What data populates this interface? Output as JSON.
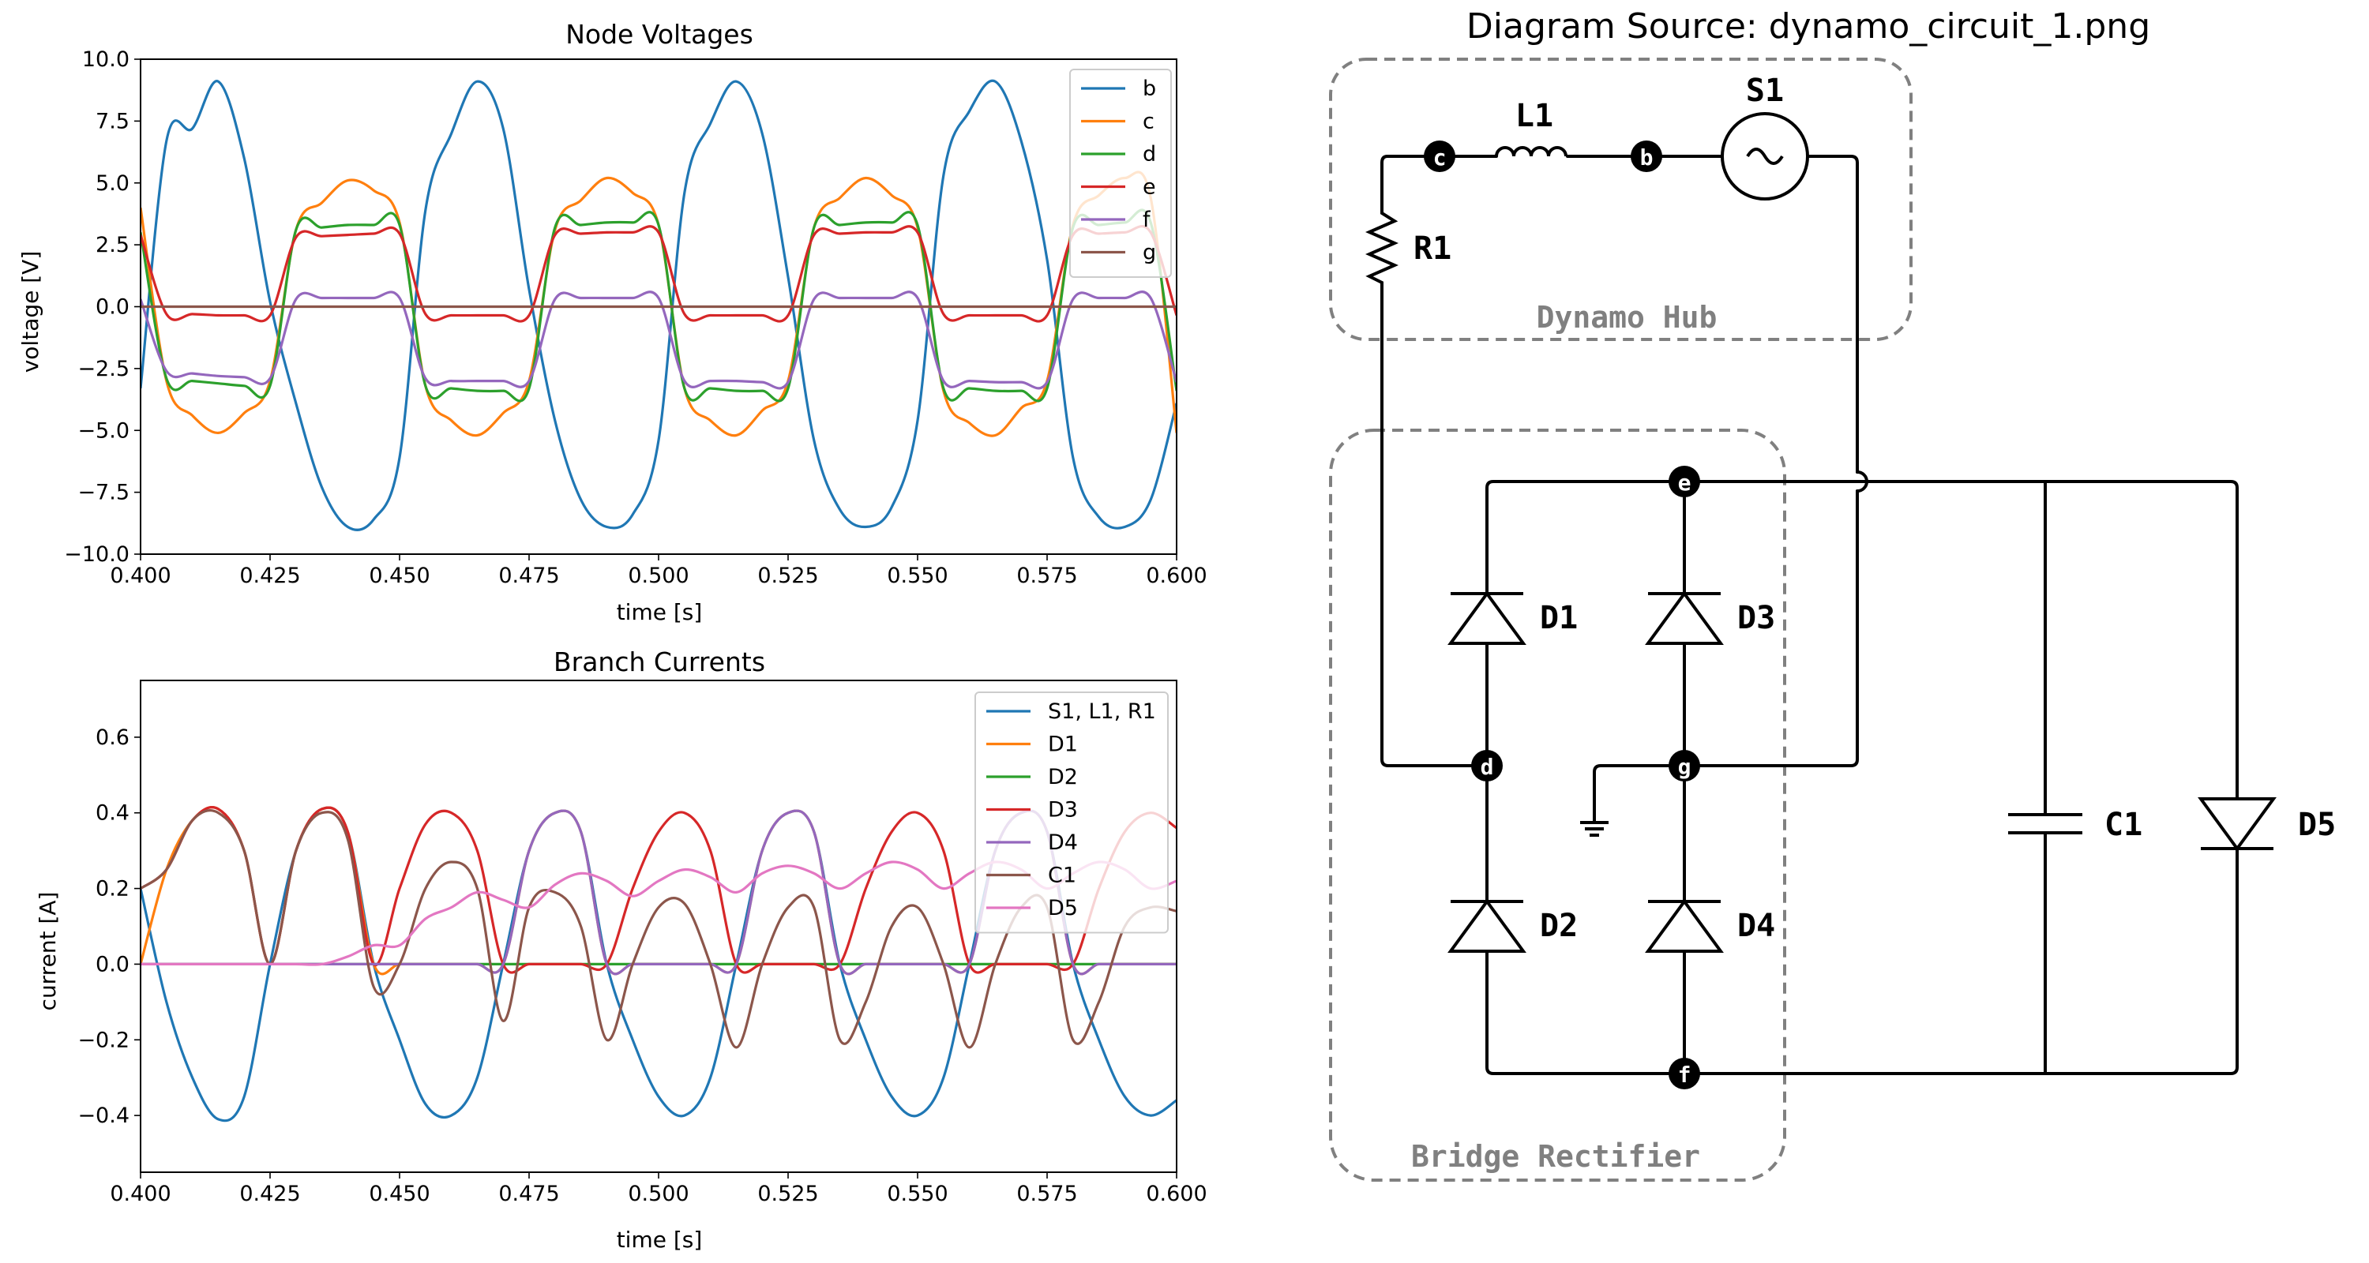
{
  "chart_data": [
    {
      "type": "line",
      "title": "Node Voltages",
      "xlabel": "time [s]",
      "ylabel": "voltage [V]",
      "xlim": [
        0.4,
        0.6
      ],
      "ylim": [
        -10.0,
        10.0
      ],
      "xticks": [
        "0.400",
        "0.425",
        "0.450",
        "0.475",
        "0.500",
        "0.525",
        "0.550",
        "0.575",
        "0.600"
      ],
      "yticks": [
        "10.0",
        "7.5",
        "5.0",
        "2.5",
        "0.0",
        "−2.5",
        "−5.0",
        "−7.5",
        "−10.0"
      ],
      "legend_position": "upper right",
      "grid": false,
      "sample_interval": 0.005,
      "series": [
        {
          "name": "b",
          "color": "#1f77b4",
          "values": [
            -3.3,
            6.7,
            7.2,
            9.1,
            6.0,
            0.2,
            -3.9,
            -7.3,
            -8.9,
            -8.6,
            -6.1,
            3.9,
            7.0,
            9.1,
            7.2,
            0.7,
            -4.6,
            -7.8,
            -8.9,
            -8.4,
            -5.4,
            4.6,
            7.4,
            9.1,
            7.0,
            1.2,
            -5.4,
            -8.2,
            -8.9,
            -8.1,
            -4.6,
            5.3,
            7.9,
            9.1,
            6.7,
            1.9,
            -6.1,
            -8.5,
            -8.9,
            -7.8,
            -3.9
          ]
        },
        {
          "name": "c",
          "color": "#ff7f0e",
          "values": [
            4.0,
            -3.0,
            -4.4,
            -5.1,
            -4.3,
            -3.0,
            3.1,
            4.2,
            5.1,
            4.7,
            3.4,
            -3.2,
            -4.6,
            -5.2,
            -4.3,
            -3.0,
            3.1,
            4.3,
            5.2,
            4.6,
            3.3,
            -3.3,
            -4.6,
            -5.2,
            -4.2,
            -3.0,
            3.2,
            4.4,
            5.2,
            4.5,
            3.2,
            -3.4,
            -4.7,
            -5.2,
            -4.1,
            -3.0,
            3.3,
            4.5,
            5.2,
            4.4,
            -5.1
          ]
        },
        {
          "name": "d",
          "color": "#2ca02c",
          "values": [
            3.0,
            -2.9,
            -3.0,
            -3.1,
            -3.2,
            -3.2,
            3.1,
            3.2,
            3.3,
            3.3,
            3.3,
            -3.2,
            -3.3,
            -3.4,
            -3.4,
            -3.3,
            3.2,
            3.3,
            3.4,
            3.4,
            3.3,
            -3.3,
            -3.3,
            -3.4,
            -3.4,
            -3.3,
            3.2,
            3.3,
            3.4,
            3.4,
            3.3,
            -3.3,
            -3.3,
            -3.4,
            -3.4,
            -3.3,
            3.2,
            3.3,
            3.4,
            3.4,
            -3.4
          ]
        },
        {
          "name": "e",
          "color": "#d62728",
          "values": [
            2.9,
            -0.3,
            -0.3,
            -0.35,
            -0.35,
            -0.35,
            2.8,
            2.85,
            2.9,
            2.95,
            2.95,
            -0.3,
            -0.35,
            -0.35,
            -0.35,
            -0.35,
            2.9,
            2.95,
            3.0,
            3.0,
            3.0,
            -0.3,
            -0.35,
            -0.35,
            -0.35,
            -0.35,
            2.9,
            2.95,
            3.0,
            3.0,
            3.0,
            -0.3,
            -0.35,
            -0.35,
            -0.35,
            -0.35,
            2.9,
            2.95,
            3.0,
            3.0,
            -0.35
          ]
        },
        {
          "name": "f",
          "color": "#9467bd",
          "values": [
            0.3,
            -2.6,
            -2.7,
            -2.8,
            -2.85,
            -2.9,
            0.3,
            0.35,
            0.35,
            0.35,
            0.35,
            -2.9,
            -3.0,
            -3.0,
            -3.0,
            -3.0,
            0.3,
            0.35,
            0.35,
            0.35,
            0.35,
            -3.0,
            -3.0,
            -3.0,
            -3.05,
            -3.05,
            0.3,
            0.35,
            0.35,
            0.35,
            0.35,
            -3.0,
            -3.0,
            -3.05,
            -3.05,
            -3.05,
            0.3,
            0.35,
            0.35,
            0.35,
            -3.05
          ]
        },
        {
          "name": "g",
          "color": "#8c564b",
          "values": [
            0,
            0,
            0,
            0,
            0,
            0,
            0,
            0,
            0,
            0,
            0,
            0,
            0,
            0,
            0,
            0,
            0,
            0,
            0,
            0,
            0,
            0,
            0,
            0,
            0,
            0,
            0,
            0,
            0,
            0,
            0,
            0,
            0,
            0,
            0,
            0,
            0,
            0,
            0,
            0,
            0
          ]
        }
      ]
    },
    {
      "type": "line",
      "title": "Branch Currents",
      "xlabel": "time [s]",
      "ylabel": "current [A]",
      "xlim": [
        0.4,
        0.6
      ],
      "ylim": [
        -0.55,
        0.75
      ],
      "xticks": [
        "0.400",
        "0.425",
        "0.450",
        "0.475",
        "0.500",
        "0.525",
        "0.550",
        "0.575",
        "0.600"
      ],
      "yticks": [
        "0.6",
        "0.4",
        "0.2",
        "0.0",
        "−0.2",
        "−0.4"
      ],
      "legend_position": "upper right",
      "grid": false,
      "sample_interval": 0.005,
      "series": [
        {
          "name": "S1, L1, R1",
          "color": "#1f77b4",
          "values": [
            0.2,
            -0.1,
            -0.3,
            -0.41,
            -0.35,
            0.0,
            0.3,
            0.41,
            0.35,
            0.0,
            -0.2,
            -0.37,
            -0.4,
            -0.3,
            0.0,
            0.3,
            0.4,
            0.35,
            0.0,
            -0.2,
            -0.35,
            -0.4,
            -0.3,
            0.0,
            0.3,
            0.4,
            0.35,
            0.0,
            -0.2,
            -0.35,
            -0.4,
            -0.3,
            0.0,
            0.3,
            0.4,
            0.35,
            0.0,
            -0.2,
            -0.35,
            -0.4,
            -0.36
          ]
        },
        {
          "name": "D1",
          "color": "#ff7f0e",
          "values": [
            0.0,
            0.25,
            0.38,
            0.41,
            0.3,
            0.0,
            0.3,
            0.41,
            0.35,
            0.0,
            0.0,
            0.0,
            0.0,
            0.0,
            0.0,
            0.3,
            0.4,
            0.35,
            0.0,
            0.0,
            0.0,
            0.0,
            0.0,
            0.0,
            0.3,
            0.4,
            0.35,
            0.0,
            0.0,
            0.0,
            0.0,
            0.0,
            0.0,
            0.3,
            0.4,
            0.35,
            0.0,
            0.0,
            0.0,
            0.0,
            0.0
          ]
        },
        {
          "name": "D2",
          "color": "#2ca02c",
          "values": [
            0.0,
            0.0,
            0.0,
            0.0,
            0.0,
            0.0,
            0.0,
            0.0,
            0.0,
            0.0,
            0.0,
            0.0,
            0.0,
            0.0,
            0.0,
            0.0,
            0.0,
            0.0,
            0.0,
            0.0,
            0.0,
            0.0,
            0.0,
            0.0,
            0.0,
            0.0,
            0.0,
            0.0,
            0.0,
            0.0,
            0.0,
            0.0,
            0.0,
            0.0,
            0.0,
            0.0,
            0.0,
            0.0,
            0.0,
            0.0,
            0.0
          ]
        },
        {
          "name": "D3",
          "color": "#d62728",
          "values": [
            0.2,
            0.25,
            0.38,
            0.41,
            0.3,
            0.0,
            0.3,
            0.41,
            0.35,
            0.0,
            0.2,
            0.37,
            0.4,
            0.3,
            0.0,
            0.0,
            0.0,
            0.0,
            0.0,
            0.2,
            0.35,
            0.4,
            0.3,
            0.0,
            0.0,
            0.0,
            0.0,
            0.0,
            0.2,
            0.35,
            0.4,
            0.3,
            0.0,
            0.0,
            0.0,
            0.0,
            0.0,
            0.2,
            0.35,
            0.4,
            0.36
          ]
        },
        {
          "name": "D4",
          "color": "#9467bd",
          "values": [
            0.0,
            0.0,
            0.0,
            0.0,
            0.0,
            0.0,
            0.0,
            0.0,
            0.0,
            0.0,
            0.0,
            0.0,
            0.0,
            0.0,
            0.0,
            0.3,
            0.4,
            0.35,
            0.0,
            0.0,
            0.0,
            0.0,
            0.0,
            0.0,
            0.3,
            0.4,
            0.35,
            0.0,
            0.0,
            0.0,
            0.0,
            0.0,
            0.0,
            0.3,
            0.4,
            0.35,
            0.0,
            0.0,
            0.0,
            0.0,
            0.0
          ]
        },
        {
          "name": "C1",
          "color": "#8c564b",
          "values": [
            0.2,
            0.25,
            0.38,
            0.4,
            0.3,
            0.0,
            0.3,
            0.4,
            0.33,
            -0.06,
            0.0,
            0.2,
            0.27,
            0.2,
            -0.15,
            0.15,
            0.19,
            0.1,
            -0.2,
            0.0,
            0.15,
            0.16,
            0.0,
            -0.22,
            0.0,
            0.15,
            0.15,
            -0.2,
            -0.1,
            0.1,
            0.15,
            0.0,
            -0.22,
            0.0,
            0.15,
            0.15,
            -0.2,
            -0.1,
            0.1,
            0.15,
            0.14
          ]
        },
        {
          "name": "D5",
          "color": "#e377c2",
          "values": [
            0.0,
            0.0,
            0.0,
            0.0,
            0.0,
            0.0,
            0.0,
            0.0,
            0.02,
            0.05,
            0.05,
            0.12,
            0.15,
            0.19,
            0.17,
            0.15,
            0.21,
            0.24,
            0.22,
            0.18,
            0.22,
            0.25,
            0.23,
            0.19,
            0.24,
            0.26,
            0.24,
            0.2,
            0.24,
            0.27,
            0.25,
            0.2,
            0.24,
            0.27,
            0.25,
            0.2,
            0.24,
            0.27,
            0.25,
            0.2,
            0.22
          ]
        }
      ]
    }
  ],
  "diagram": {
    "title": "Diagram Source: dynamo_circuit_1.png",
    "groups": {
      "hub": "Dynamo Hub",
      "rectifier": "Bridge Rectifier"
    },
    "components": {
      "L1": "L1",
      "S1": "S1",
      "R1": "R1",
      "D1": "D1",
      "D2": "D2",
      "D3": "D3",
      "D4": "D4",
      "D5": "D5",
      "C1": "C1"
    },
    "nodes": {
      "b": "b",
      "c": "c",
      "d": "d",
      "e": "e",
      "f": "f",
      "g": "g"
    }
  }
}
